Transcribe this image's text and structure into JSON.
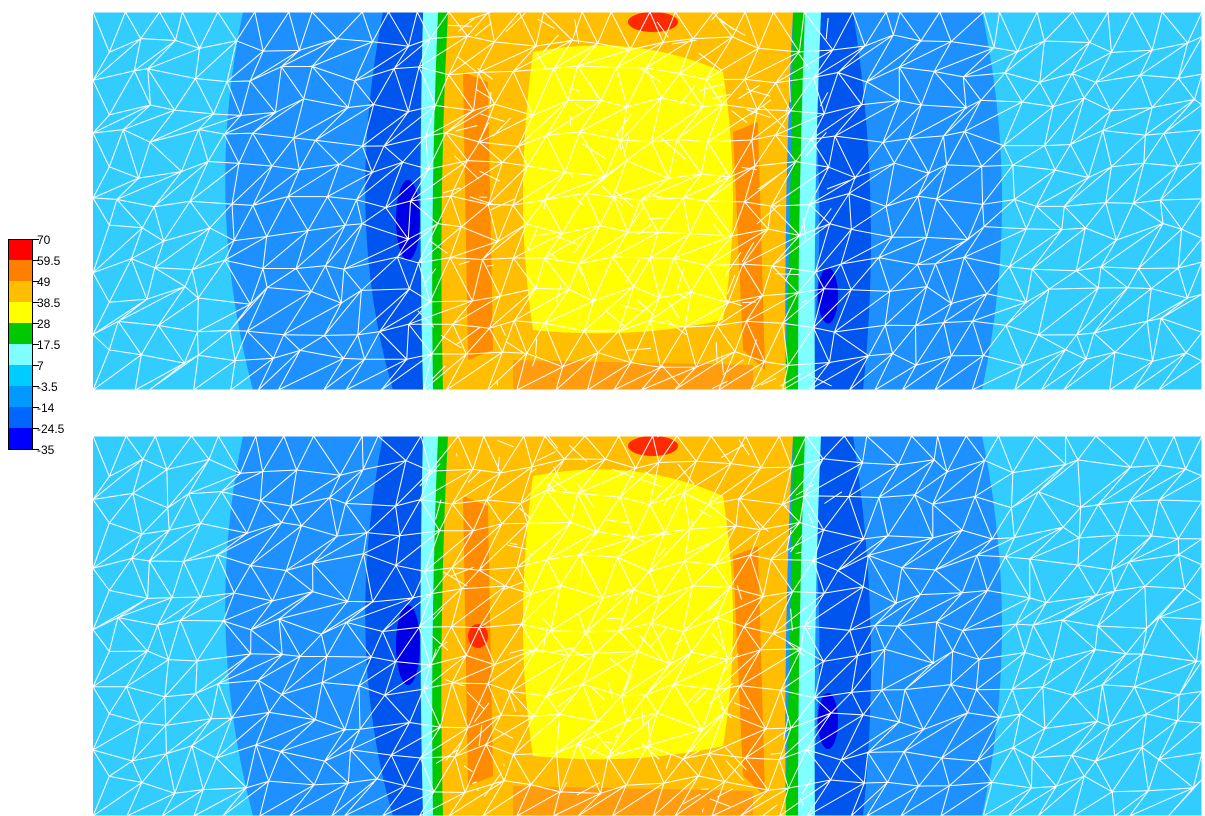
{
  "colorbar": {
    "ticks": [
      "70",
      "59.5",
      "49",
      "38.5",
      "28",
      "17.5",
      "7",
      "-3.5",
      "-14",
      "-24.5",
      "-35"
    ],
    "band_colors": [
      "#ff0000",
      "#ff7f00",
      "#ffbf00",
      "#ffff00",
      "#00c800",
      "#7fffff",
      "#00ccff",
      "#0099ff",
      "#0066ff",
      "#0000ff"
    ]
  },
  "panels": [
    {
      "name": "upper"
    },
    {
      "name": "lower"
    }
  ],
  "palette": {
    "background_field": "#33ccff",
    "outer_blue": "#1e90ff",
    "deep_blue": "#0000e6",
    "mesh_line": "#ffffff"
  }
}
